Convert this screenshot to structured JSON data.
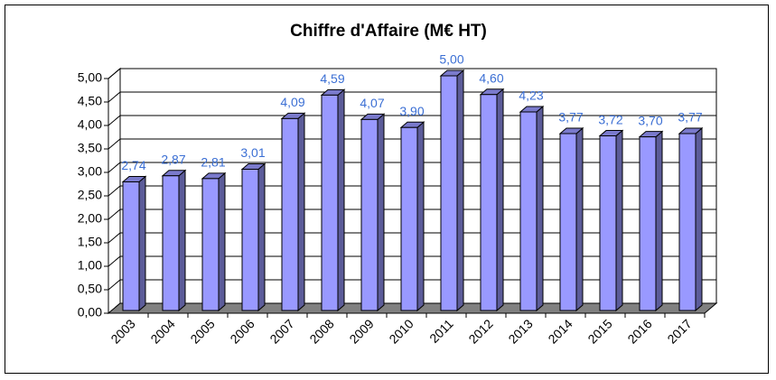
{
  "chart_data": {
    "type": "bar3d",
    "title": "Chiffre d'Affaire (M€ HT)",
    "categories": [
      "2003",
      "2004",
      "2005",
      "2006",
      "2007",
      "2008",
      "2009",
      "2010",
      "2011",
      "2012",
      "2013",
      "2014",
      "2015",
      "2016",
      "2017"
    ],
    "values": [
      2.74,
      2.87,
      2.81,
      3.01,
      4.09,
      4.59,
      4.07,
      3.9,
      5.0,
      4.6,
      4.23,
      3.77,
      3.72,
      3.7,
      3.77
    ],
    "value_labels": [
      "2,74",
      "2,87",
      "2,81",
      "3,01",
      "4,09",
      "4,59",
      "4,07",
      "3,90",
      "5,00",
      "4,60",
      "4,23",
      "3,77",
      "3,72",
      "3,70",
      "3,77"
    ],
    "color": "#9999ff",
    "ylim": [
      0,
      5
    ],
    "yticks": [
      {
        "value": 0,
        "label": "0,00"
      },
      {
        "value": 0.5,
        "label": "0,50"
      },
      {
        "value": 1,
        "label": "1,00"
      },
      {
        "value": 1.5,
        "label": "1,50"
      },
      {
        "value": 2,
        "label": "2,00"
      },
      {
        "value": 2.5,
        "label": "2,50"
      },
      {
        "value": 3,
        "label": "3,00"
      },
      {
        "value": 3.5,
        "label": "3,50"
      },
      {
        "value": 4,
        "label": "4,00"
      },
      {
        "value": 4.5,
        "label": "4,50"
      },
      {
        "value": 5,
        "label": "5,00"
      }
    ],
    "grid": true
  }
}
